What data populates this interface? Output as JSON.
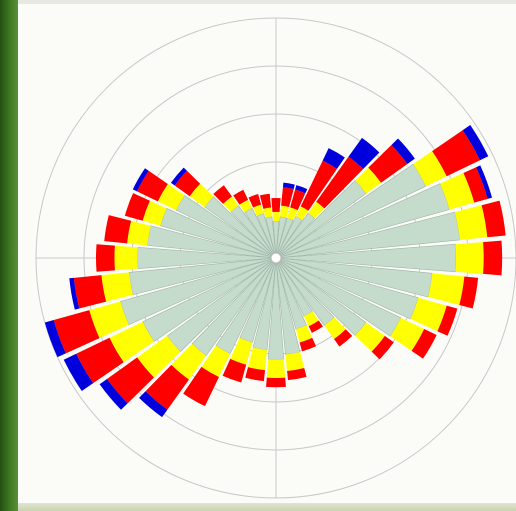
{
  "chart_data": {
    "type": "polar-stacked-bar",
    "title": "",
    "direction_unit": "deg",
    "sectors_deg": [
      0,
      10,
      20,
      30,
      40,
      50,
      60,
      70,
      80,
      90,
      100,
      110,
      120,
      130,
      140,
      150,
      160,
      170,
      180,
      190,
      200,
      210,
      220,
      230,
      240,
      250,
      260,
      270,
      280,
      290,
      300,
      310,
      320,
      330,
      340,
      350
    ],
    "series": [
      {
        "color": "#c5dccc",
        "values": [
          40,
          45,
          45,
          50,
          60,
          120,
          180,
          195,
          200,
          195,
          170,
          160,
          150,
          120,
          90,
          70,
          80,
          105,
          110,
          100,
          95,
          115,
          130,
          145,
          160,
          175,
          160,
          150,
          140,
          130,
          120,
          95,
          70,
          60,
          50,
          45
        ]
      },
      {
        "color": "#ffff00",
        "values": [
          10,
          12,
          12,
          12,
          15,
          20,
          25,
          28,
          30,
          30,
          35,
          32,
          28,
          25,
          18,
          12,
          15,
          18,
          20,
          22,
          25,
          28,
          32,
          40,
          40,
          35,
          30,
          25,
          22,
          20,
          22,
          20,
          12,
          10,
          10,
          10
        ]
      },
      {
        "color": "#ff0000",
        "values": [
          15,
          20,
          20,
          55,
          60,
          35,
          40,
          15,
          20,
          20,
          15,
          12,
          15,
          12,
          10,
          8,
          10,
          10,
          10,
          12,
          20,
          35,
          40,
          40,
          40,
          40,
          30,
          20,
          25,
          20,
          25,
          20,
          15,
          12,
          12,
          15
        ]
      },
      {
        "color": "#0000dd",
        "values": [
          0,
          5,
          5,
          15,
          25,
          10,
          10,
          5,
          0,
          0,
          0,
          0,
          0,
          0,
          0,
          0,
          0,
          0,
          0,
          0,
          0,
          0,
          10,
          10,
          15,
          10,
          5,
          0,
          0,
          0,
          5,
          5,
          0,
          0,
          0,
          0
        ]
      }
    ],
    "radial_max": 260,
    "rings": [
      52,
      104,
      156,
      208,
      260
    ],
    "ring_labels": [
      "",
      "",
      "",
      "",
      ""
    ],
    "axis_labels": {
      "north": "",
      "west": "",
      "south": "",
      "ne": ""
    },
    "grid": true
  }
}
